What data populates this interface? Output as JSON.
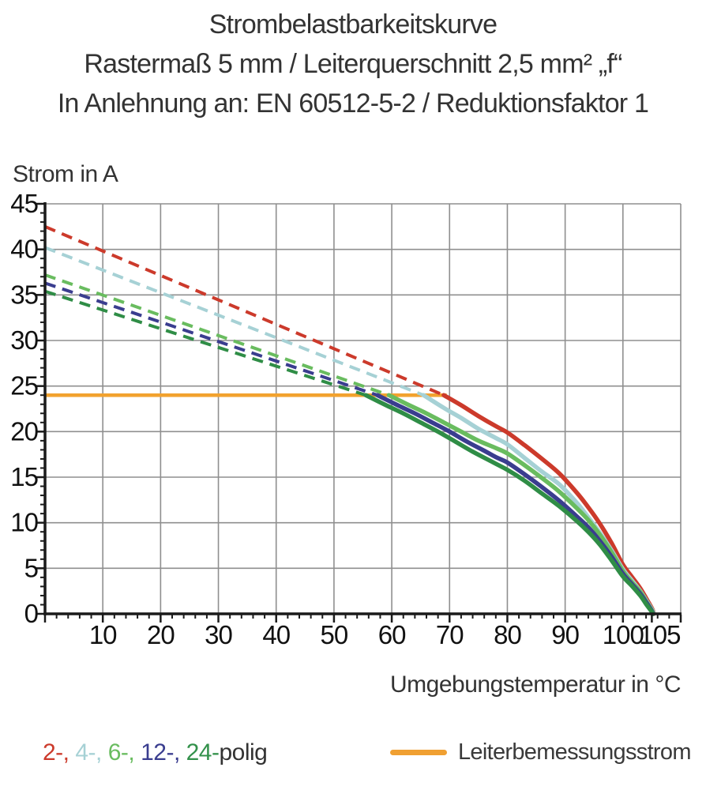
{
  "title": {
    "line1": "Strombelastbarkeitskurve",
    "line2": "Rastermaß 5 mm / Leiterquerschnitt 2,5 mm² „f“",
    "line3": "In Anlehnung an: EN 60512-5-2 / Reduktionsfaktor 1"
  },
  "chart_data": {
    "type": "line",
    "title": "Strombelastbarkeitskurve",
    "xlabel": "Umgebungstemperatur in °C",
    "ylabel": "Strom in A",
    "xlim": [
      0,
      110
    ],
    "ylim": [
      0,
      45
    ],
    "x_ticks": [
      10,
      20,
      30,
      40,
      50,
      60,
      70,
      80,
      90,
      100,
      105
    ],
    "x_minor_step": 2,
    "y_ticks": [
      0,
      5,
      10,
      15,
      20,
      25,
      30,
      35,
      40,
      45
    ],
    "y_minor_step": 1,
    "grid": true,
    "grid_color": "#8f8f8f",
    "axis_color": "#1a1a1a",
    "reference_line": {
      "label": "Leiterbemessungsstrom",
      "value": 24,
      "x_start": 0,
      "x_end": 69.5,
      "color": "#f2a22e"
    },
    "series": [
      {
        "name": "2-polig",
        "color": "#cc3a2b",
        "dashed_points": [
          [
            0,
            42.5
          ],
          [
            69,
            24
          ]
        ],
        "solid_points": [
          [
            69,
            24
          ],
          [
            72,
            22.9
          ],
          [
            75,
            21.7
          ],
          [
            78,
            20.6
          ],
          [
            80,
            19.9
          ],
          [
            83,
            18.5
          ],
          [
            86,
            17.0
          ],
          [
            89,
            15.4
          ],
          [
            92,
            13.3
          ],
          [
            94,
            11.7
          ],
          [
            96,
            9.9
          ],
          [
            98,
            7.8
          ],
          [
            100,
            5.4
          ],
          [
            101.5,
            4.1
          ],
          [
            103,
            2.8
          ],
          [
            104.3,
            1.4
          ],
          [
            105.1,
            0.5
          ],
          [
            105.35,
            0
          ]
        ]
      },
      {
        "name": "4-polig",
        "color": "#a6d1d5",
        "dashed_points": [
          [
            0,
            40.2
          ],
          [
            65.5,
            24
          ]
        ],
        "solid_points": [
          [
            65.5,
            24
          ],
          [
            69,
            22.6
          ],
          [
            72,
            21.5
          ],
          [
            75,
            20.3
          ],
          [
            78,
            19.3
          ],
          [
            80,
            18.6
          ],
          [
            83,
            17.1
          ],
          [
            86,
            15.6
          ],
          [
            89,
            14.2
          ],
          [
            92,
            12.2
          ],
          [
            94,
            10.6
          ],
          [
            96,
            8.9
          ],
          [
            98,
            7.0
          ],
          [
            100,
            4.9
          ],
          [
            101.5,
            3.7
          ],
          [
            103,
            2.5
          ],
          [
            104.3,
            1.2
          ],
          [
            105.1,
            0.4
          ],
          [
            105.3,
            0
          ]
        ]
      },
      {
        "name": "6-polig",
        "color": "#69bc5f",
        "dashed_points": [
          [
            0,
            37.2
          ],
          [
            59.5,
            24
          ]
        ],
        "solid_points": [
          [
            59.5,
            24
          ],
          [
            63,
            22.9
          ],
          [
            66,
            22.0
          ],
          [
            69,
            21.0
          ],
          [
            72,
            20.0
          ],
          [
            75,
            19.0
          ],
          [
            78,
            18.2
          ],
          [
            80,
            17.6
          ],
          [
            83,
            16.3
          ],
          [
            86,
            14.9
          ],
          [
            89,
            13.4
          ],
          [
            92,
            11.6
          ],
          [
            94,
            10.3
          ],
          [
            96,
            8.7
          ],
          [
            98,
            6.8
          ],
          [
            100,
            4.7
          ],
          [
            101.5,
            3.5
          ],
          [
            103,
            2.4
          ],
          [
            104.2,
            1.2
          ],
          [
            105,
            0.4
          ],
          [
            105.25,
            0
          ]
        ]
      },
      {
        "name": "12-polig",
        "color": "#3a3d8f",
        "dashed_points": [
          [
            0,
            36.3
          ],
          [
            57.5,
            24
          ]
        ],
        "solid_points": [
          [
            57.5,
            24
          ],
          [
            61,
            22.9
          ],
          [
            64,
            22.0
          ],
          [
            67,
            21.0
          ],
          [
            70,
            20.0
          ],
          [
            73,
            18.9
          ],
          [
            76,
            17.9
          ],
          [
            78,
            17.2
          ],
          [
            80,
            16.6
          ],
          [
            83,
            15.3
          ],
          [
            86,
            13.9
          ],
          [
            89,
            12.4
          ],
          [
            92,
            10.7
          ],
          [
            94,
            9.5
          ],
          [
            96,
            8.0
          ],
          [
            98,
            6.3
          ],
          [
            100,
            4.4
          ],
          [
            101.5,
            3.3
          ],
          [
            103,
            2.2
          ],
          [
            104.2,
            1.1
          ],
          [
            105,
            0.3
          ],
          [
            105.2,
            0
          ]
        ]
      },
      {
        "name": "24-polig",
        "color": "#2f8d46",
        "dashed_points": [
          [
            0,
            35.4
          ],
          [
            55.5,
            24
          ]
        ],
        "solid_points": [
          [
            55.5,
            24
          ],
          [
            59,
            22.9
          ],
          [
            62,
            22.0
          ],
          [
            65,
            21.0
          ],
          [
            68,
            20.0
          ],
          [
            71,
            18.9
          ],
          [
            74,
            17.8
          ],
          [
            77,
            16.8
          ],
          [
            80,
            15.8
          ],
          [
            83,
            14.6
          ],
          [
            86,
            13.2
          ],
          [
            89,
            11.8
          ],
          [
            92,
            10.2
          ],
          [
            94,
            9.0
          ],
          [
            96,
            7.6
          ],
          [
            98,
            5.9
          ],
          [
            100,
            4.1
          ],
          [
            101.5,
            3.1
          ],
          [
            103,
            2.0
          ],
          [
            104.1,
            1.0
          ],
          [
            104.9,
            0.3
          ],
          [
            105.15,
            0
          ]
        ]
      }
    ],
    "legend_position": "bottom"
  },
  "legend": {
    "pole_items": [
      {
        "label": "2-,",
        "color": "#cc3a2b"
      },
      {
        "label": "4-,",
        "color": "#a6d1d5"
      },
      {
        "label": "6-,",
        "color": "#69bc5f"
      },
      {
        "label": "12-,",
        "color": "#3a3d8f"
      },
      {
        "label": "24-",
        "color": "#33914b"
      }
    ],
    "suffix": "polig",
    "rated_label": "Leiterbemessungsstrom",
    "rated_color": "#f0a032"
  }
}
